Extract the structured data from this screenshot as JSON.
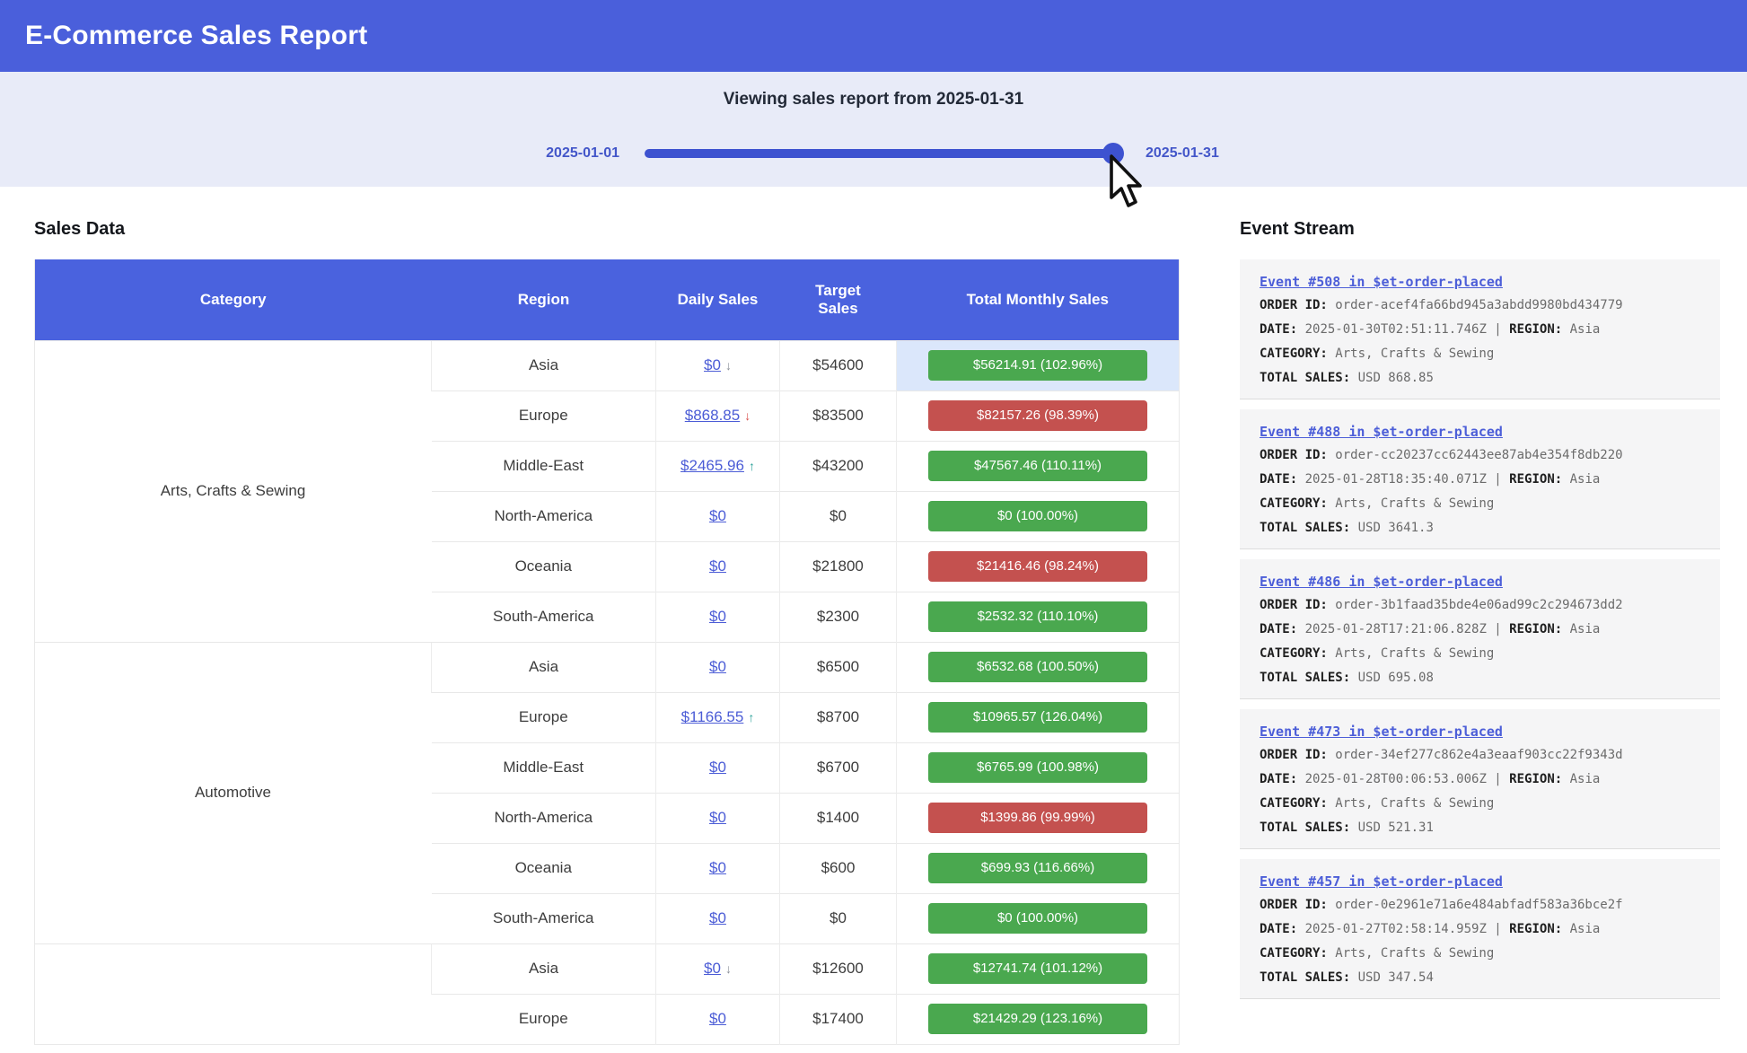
{
  "banner": {
    "title": "E-Commerce Sales Report"
  },
  "slider": {
    "title": "Viewing sales report from 2025-01-31",
    "min_label": "2025-01-01",
    "max_label": "2025-01-31"
  },
  "sales": {
    "heading": "Sales Data",
    "columns": [
      "Category",
      "Region",
      "Daily Sales",
      "Target Sales",
      "Total Monthly Sales"
    ],
    "groups": [
      {
        "category": "Arts, Crafts & Sewing",
        "rows": [
          {
            "region": "Asia",
            "daily_sales": "$0",
            "trend": "down",
            "trend_color": "gray",
            "target_sales": "$54600",
            "total_monthly": "$56214.91 (102.96%)",
            "status": "green",
            "highlight": true
          },
          {
            "region": "Europe",
            "daily_sales": "$868.85",
            "trend": "down",
            "trend_color": "red",
            "target_sales": "$83500",
            "total_monthly": "$82157.26 (98.39%)",
            "status": "red"
          },
          {
            "region": "Middle-East",
            "daily_sales": "$2465.96",
            "trend": "up",
            "trend_color": "teal",
            "target_sales": "$43200",
            "total_monthly": "$47567.46 (110.11%)",
            "status": "green"
          },
          {
            "region": "North-America",
            "daily_sales": "$0",
            "trend": null,
            "trend_color": null,
            "target_sales": "$0",
            "total_monthly": "$0 (100.00%)",
            "status": "green"
          },
          {
            "region": "Oceania",
            "daily_sales": "$0",
            "trend": null,
            "trend_color": null,
            "target_sales": "$21800",
            "total_monthly": "$21416.46 (98.24%)",
            "status": "red"
          },
          {
            "region": "South-America",
            "daily_sales": "$0",
            "trend": null,
            "trend_color": null,
            "target_sales": "$2300",
            "total_monthly": "$2532.32 (110.10%)",
            "status": "green"
          }
        ]
      },
      {
        "category": "Automotive",
        "rows": [
          {
            "region": "Asia",
            "daily_sales": "$0",
            "trend": null,
            "trend_color": null,
            "target_sales": "$6500",
            "total_monthly": "$6532.68 (100.50%)",
            "status": "green"
          },
          {
            "region": "Europe",
            "daily_sales": "$1166.55",
            "trend": "up",
            "trend_color": "teal",
            "target_sales": "$8700",
            "total_monthly": "$10965.57 (126.04%)",
            "status": "green"
          },
          {
            "region": "Middle-East",
            "daily_sales": "$0",
            "trend": null,
            "trend_color": null,
            "target_sales": "$6700",
            "total_monthly": "$6765.99 (100.98%)",
            "status": "green"
          },
          {
            "region": "North-America",
            "daily_sales": "$0",
            "trend": null,
            "trend_color": null,
            "target_sales": "$1400",
            "total_monthly": "$1399.86 (99.99%)",
            "status": "red"
          },
          {
            "region": "Oceania",
            "daily_sales": "$0",
            "trend": null,
            "trend_color": null,
            "target_sales": "$600",
            "total_monthly": "$699.93 (116.66%)",
            "status": "green"
          },
          {
            "region": "South-America",
            "daily_sales": "$0",
            "trend": null,
            "trend_color": null,
            "target_sales": "$0",
            "total_monthly": "$0 (100.00%)",
            "status": "green"
          }
        ]
      },
      {
        "category": "",
        "rows": [
          {
            "region": "Asia",
            "daily_sales": "$0",
            "trend": "down",
            "trend_color": "gray",
            "target_sales": "$12600",
            "total_monthly": "$12741.74 (101.12%)",
            "status": "green"
          },
          {
            "region": "Europe",
            "daily_sales": "$0",
            "trend": null,
            "trend_color": null,
            "target_sales": "$17400",
            "total_monthly": "$21429.29 (123.16%)",
            "status": "green"
          }
        ]
      }
    ]
  },
  "events": {
    "heading": "Event Stream",
    "labels": {
      "order_id": "ORDER ID:",
      "date": "DATE:",
      "region": "REGION:",
      "category": "CATEGORY:",
      "total_sales": "TOTAL SALES:",
      "separator": "|"
    },
    "items": [
      {
        "title": "Event #508 in $et-order-placed",
        "order_id": "order-acef4fa66bd945a3abdd9980bd434779",
        "date": "2025-01-30T02:51:11.746Z",
        "region": "Asia",
        "category": "Arts, Crafts & Sewing",
        "total_sales": "USD 868.85"
      },
      {
        "title": "Event #488 in $et-order-placed",
        "order_id": "order-cc20237cc62443ee87ab4e354f8db220",
        "date": "2025-01-28T18:35:40.071Z",
        "region": "Asia",
        "category": "Arts, Crafts & Sewing",
        "total_sales": "USD 3641.3"
      },
      {
        "title": "Event #486 in $et-order-placed",
        "order_id": "order-3b1faad35bde4e06ad99c2c294673dd2",
        "date": "2025-01-28T17:21:06.828Z",
        "region": "Asia",
        "category": "Arts, Crafts & Sewing",
        "total_sales": "USD 695.08"
      },
      {
        "title": "Event #473 in $et-order-placed",
        "order_id": "order-34ef277c862e4a3eaaf903cc22f9343d",
        "date": "2025-01-28T00:06:53.006Z",
        "region": "Asia",
        "category": "Arts, Crafts & Sewing",
        "total_sales": "USD 521.31"
      },
      {
        "title": "Event #457 in $et-order-placed",
        "order_id": "order-0e2961e71a6e484abfadf583a36bce2f",
        "date": "2025-01-27T02:58:14.959Z",
        "region": "Asia",
        "category": "Arts, Crafts & Sewing",
        "total_sales": "USD 347.54"
      }
    ]
  },
  "icons": {
    "up": "↑",
    "down": "↓"
  },
  "colors": {
    "banner_blue": "#4a5fdb",
    "table_header_blue": "#4a62de",
    "slider_blue": "#3d52d0",
    "slider_label_blue": "#4356c9",
    "link_blue": "#4b5cd6",
    "badge": {
      "green": "#4aa84f",
      "red": "#c4514f"
    },
    "trend": {
      "gray": "#8b8f98",
      "red": "#d9534f",
      "teal": "#2aa198"
    },
    "highlight": "#dbe7fb"
  }
}
